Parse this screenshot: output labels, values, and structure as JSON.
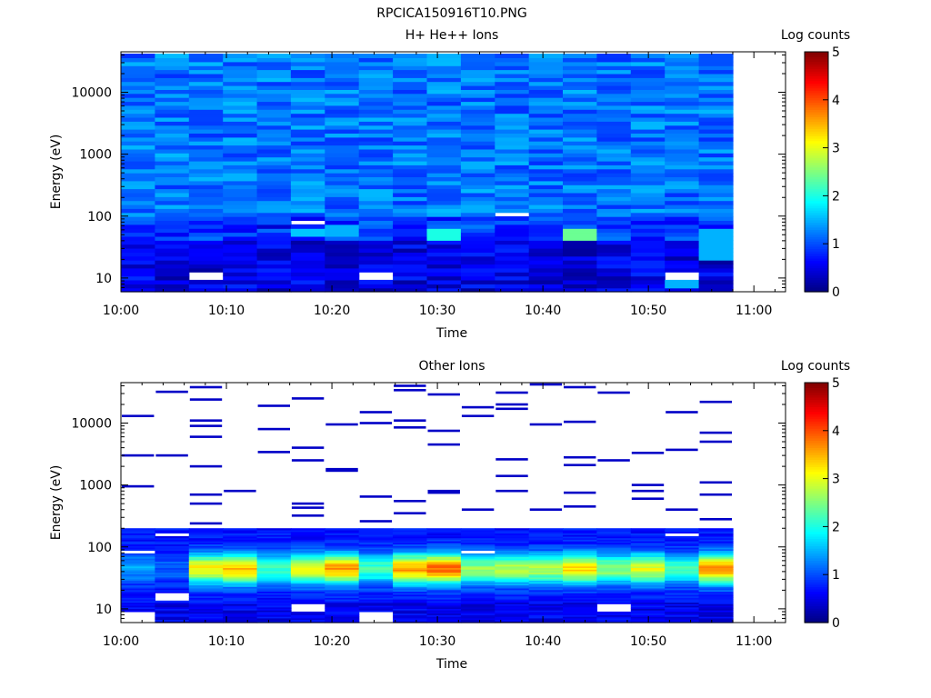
{
  "page_title": "RPCICA150916T10.PNG",
  "colormap_stops": [
    "#00007f",
    "#0000ff",
    "#007fff",
    "#00ffff",
    "#7fff7f",
    "#ffff00",
    "#ff7f00",
    "#ff0000",
    "#7f0000"
  ],
  "chart_data": [
    {
      "type": "heatmap",
      "title": "H+ He++ Ions",
      "xlabel": "Time",
      "ylabel": "Energy (eV)",
      "yscale": "log",
      "ylim": [
        6,
        45000
      ],
      "xlim": [
        "10:00",
        "11:03"
      ],
      "x_ticks": [
        "10:00",
        "10:10",
        "10:20",
        "10:30",
        "10:40",
        "10:50",
        "11:00"
      ],
      "y_ticks": [
        "10",
        "100",
        "1000",
        "10000"
      ],
      "data_end_time": "10:58",
      "time_bins": 18,
      "energy_range_eV": [
        6,
        42000
      ],
      "colorbar": {
        "label": "Log counts",
        "range": [
          0,
          5
        ],
        "ticks": [
          "0",
          "1",
          "2",
          "3",
          "4",
          "5"
        ]
      },
      "bands": [
        {
          "emin": 6,
          "emax": 40,
          "level": 0.5
        },
        {
          "emin": 40,
          "emax": 100,
          "level": 0.9
        },
        {
          "emin": 100,
          "emax": 42000,
          "level": 1.2
        }
      ],
      "highlights": [
        {
          "bin": 4,
          "emin": 60,
          "emax": 75,
          "level": 0.4
        },
        {
          "bin": 5,
          "emin": 45,
          "emax": 60,
          "level": 1.6
        },
        {
          "bin": 6,
          "emin": 45,
          "emax": 75,
          "level": 1.5
        },
        {
          "bin": 9,
          "emin": 40,
          "emax": 60,
          "level": 2.0
        },
        {
          "bin": 13,
          "emin": 40,
          "emax": 60,
          "level": 2.4
        },
        {
          "bin": 17,
          "emin": 20,
          "emax": 60,
          "level": 1.5
        },
        {
          "bin": 16,
          "emin": 7,
          "emax": 10,
          "level": 1.5
        }
      ],
      "gaps": [
        {
          "bin": 2,
          "emin": 10,
          "emax": 13
        },
        {
          "bin": 5,
          "emin": 70,
          "emax": 85
        },
        {
          "bin": 7,
          "emin": 10,
          "emax": 13
        },
        {
          "bin": 7,
          "emin": 112,
          "emax": 120
        },
        {
          "bin": 11,
          "emin": 100,
          "emax": 108
        },
        {
          "bin": 16,
          "emin": 10,
          "emax": 13
        }
      ]
    },
    {
      "type": "heatmap",
      "title": "Other Ions",
      "xlabel": "Time",
      "ylabel": "Energy (eV)",
      "yscale": "log",
      "ylim": [
        6,
        45000
      ],
      "xlim": [
        "10:00",
        "11:03"
      ],
      "x_ticks": [
        "10:00",
        "10:10",
        "10:20",
        "10:30",
        "10:40",
        "10:50",
        "11:00"
      ],
      "y_ticks": [
        "10",
        "100",
        "1000",
        "10000"
      ],
      "data_end_time": "10:58",
      "time_bins": 18,
      "energy_range_eV": [
        6,
        200
      ],
      "colorbar": {
        "label": "Log counts",
        "range": [
          0,
          5
        ],
        "ticks": [
          "0",
          "1",
          "2",
          "3",
          "4",
          "5"
        ]
      },
      "peak_levels": [
        1.4,
        1.1,
        3.2,
        3.4,
        2.2,
        3.0,
        3.6,
        2.2,
        3.6,
        3.9,
        2.6,
        2.8,
        2.8,
        3.3,
        2.6,
        3.0,
        2.2,
        3.6
      ],
      "peak_energy_eV": 45,
      "background_level": 0.7,
      "sparse_lines": [
        {
          "bin": 0,
          "energy_eV": 13000
        },
        {
          "bin": 0,
          "energy_eV": 3000
        },
        {
          "bin": 0,
          "energy_eV": 950
        },
        {
          "bin": 1,
          "energy_eV": 32000
        },
        {
          "bin": 1,
          "energy_eV": 3000
        },
        {
          "bin": 2,
          "energy_eV": 38000
        },
        {
          "bin": 2,
          "energy_eV": 24000
        },
        {
          "bin": 2,
          "energy_eV": 11000
        },
        {
          "bin": 2,
          "energy_eV": 9000
        },
        {
          "bin": 2,
          "energy_eV": 6000
        },
        {
          "bin": 2,
          "energy_eV": 2000
        },
        {
          "bin": 2,
          "energy_eV": 700
        },
        {
          "bin": 2,
          "energy_eV": 500
        },
        {
          "bin": 2,
          "energy_eV": 240
        },
        {
          "bin": 3,
          "energy_eV": 800
        },
        {
          "bin": 4,
          "energy_eV": 19000
        },
        {
          "bin": 4,
          "energy_eV": 8000
        },
        {
          "bin": 4,
          "energy_eV": 3400
        },
        {
          "bin": 5,
          "energy_eV": 25000
        },
        {
          "bin": 5,
          "energy_eV": 4000
        },
        {
          "bin": 5,
          "energy_eV": 2500
        },
        {
          "bin": 5,
          "energy_eV": 500
        },
        {
          "bin": 5,
          "energy_eV": 430
        },
        {
          "bin": 5,
          "energy_eV": 320
        },
        {
          "bin": 6,
          "energy_eV": 9500
        },
        {
          "bin": 6,
          "energy_eV": 1800
        },
        {
          "bin": 6,
          "energy_eV": 1700
        },
        {
          "bin": 7,
          "energy_eV": 15000
        },
        {
          "bin": 7,
          "energy_eV": 10000
        },
        {
          "bin": 7,
          "energy_eV": 650
        },
        {
          "bin": 7,
          "energy_eV": 260
        },
        {
          "bin": 8,
          "energy_eV": 40000
        },
        {
          "bin": 8,
          "energy_eV": 34000
        },
        {
          "bin": 8,
          "energy_eV": 11000
        },
        {
          "bin": 8,
          "energy_eV": 8500
        },
        {
          "bin": 8,
          "energy_eV": 550
        },
        {
          "bin": 8,
          "energy_eV": 350
        },
        {
          "bin": 9,
          "energy_eV": 29000
        },
        {
          "bin": 9,
          "energy_eV": 7500
        },
        {
          "bin": 9,
          "energy_eV": 4500
        },
        {
          "bin": 9,
          "energy_eV": 800
        },
        {
          "bin": 9,
          "energy_eV": 750
        },
        {
          "bin": 10,
          "energy_eV": 18000
        },
        {
          "bin": 10,
          "energy_eV": 13000
        },
        {
          "bin": 10,
          "energy_eV": 400
        },
        {
          "bin": 11,
          "energy_eV": 31000
        },
        {
          "bin": 11,
          "energy_eV": 20000
        },
        {
          "bin": 11,
          "energy_eV": 17000
        },
        {
          "bin": 11,
          "energy_eV": 2600
        },
        {
          "bin": 11,
          "energy_eV": 1400
        },
        {
          "bin": 11,
          "energy_eV": 800
        },
        {
          "bin": 12,
          "energy_eV": 42000
        },
        {
          "bin": 12,
          "energy_eV": 9500
        },
        {
          "bin": 12,
          "energy_eV": 400
        },
        {
          "bin": 13,
          "energy_eV": 38000
        },
        {
          "bin": 13,
          "energy_eV": 10500
        },
        {
          "bin": 13,
          "energy_eV": 2800
        },
        {
          "bin": 13,
          "energy_eV": 2100
        },
        {
          "bin": 13,
          "energy_eV": 750
        },
        {
          "bin": 13,
          "energy_eV": 450
        },
        {
          "bin": 14,
          "energy_eV": 31000
        },
        {
          "bin": 14,
          "energy_eV": 2500
        },
        {
          "bin": 15,
          "energy_eV": 3300
        },
        {
          "bin": 15,
          "energy_eV": 1000
        },
        {
          "bin": 15,
          "energy_eV": 800
        },
        {
          "bin": 15,
          "energy_eV": 600
        },
        {
          "bin": 16,
          "energy_eV": 15000
        },
        {
          "bin": 16,
          "energy_eV": 3700
        },
        {
          "bin": 16,
          "energy_eV": 400
        },
        {
          "bin": 17,
          "energy_eV": 22000
        },
        {
          "bin": 17,
          "energy_eV": 7000
        },
        {
          "bin": 17,
          "energy_eV": 5000
        },
        {
          "bin": 17,
          "energy_eV": 1100
        },
        {
          "bin": 17,
          "energy_eV": 700
        },
        {
          "bin": 17,
          "energy_eV": 280
        }
      ],
      "gaps": [
        {
          "bin": 0,
          "emin": 6,
          "emax": 9
        },
        {
          "bin": 0,
          "emin": 80,
          "emax": 90
        },
        {
          "bin": 1,
          "emin": 14,
          "emax": 18
        },
        {
          "bin": 1,
          "emin": 150,
          "emax": 170
        },
        {
          "bin": 5,
          "emin": 9,
          "emax": 12
        },
        {
          "bin": 7,
          "emin": 6,
          "emax": 9
        },
        {
          "bin": 10,
          "emin": 80,
          "emax": 90
        },
        {
          "bin": 14,
          "emin": 9,
          "emax": 12
        },
        {
          "bin": 16,
          "emin": 150,
          "emax": 170
        }
      ]
    }
  ]
}
